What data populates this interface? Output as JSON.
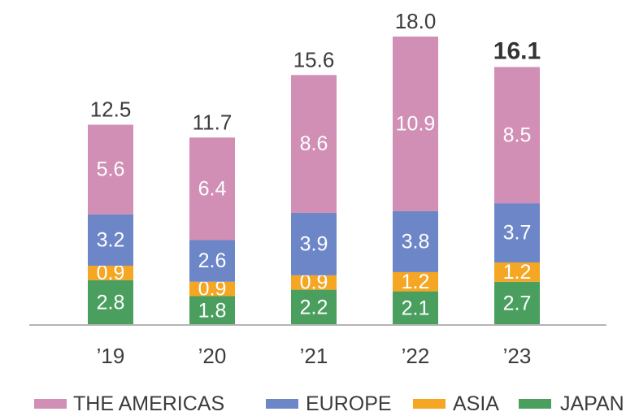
{
  "chart_data": {
    "type": "bar",
    "stacked": true,
    "categories": [
      "’19",
      "’20",
      "’21",
      "’22",
      "’23"
    ],
    "series": [
      {
        "name": "JAPAN",
        "color": "#4a9f5f",
        "values": [
          2.8,
          1.8,
          2.2,
          2.1,
          2.7
        ]
      },
      {
        "name": "ASIA",
        "color": "#f5a623",
        "values": [
          0.9,
          0.9,
          0.9,
          1.2,
          1.2
        ]
      },
      {
        "name": "EUROPE",
        "color": "#6c86c8",
        "values": [
          3.2,
          2.6,
          3.9,
          3.8,
          3.7
        ]
      },
      {
        "name": "THE AMERICAS",
        "color": "#d18fb6",
        "values": [
          5.6,
          6.4,
          8.6,
          10.9,
          8.5
        ]
      }
    ],
    "totals": [
      "12.5",
      "11.7",
      "15.6",
      "18.0",
      "16.1"
    ],
    "highlight_total_index": 4,
    "legend_order": [
      "THE AMERICAS",
      "EUROPE",
      "ASIA",
      "JAPAN"
    ],
    "legend_position": "bottom",
    "ylim": [
      0,
      18
    ],
    "grid": false,
    "title": "",
    "xlabel": "",
    "ylabel": ""
  }
}
